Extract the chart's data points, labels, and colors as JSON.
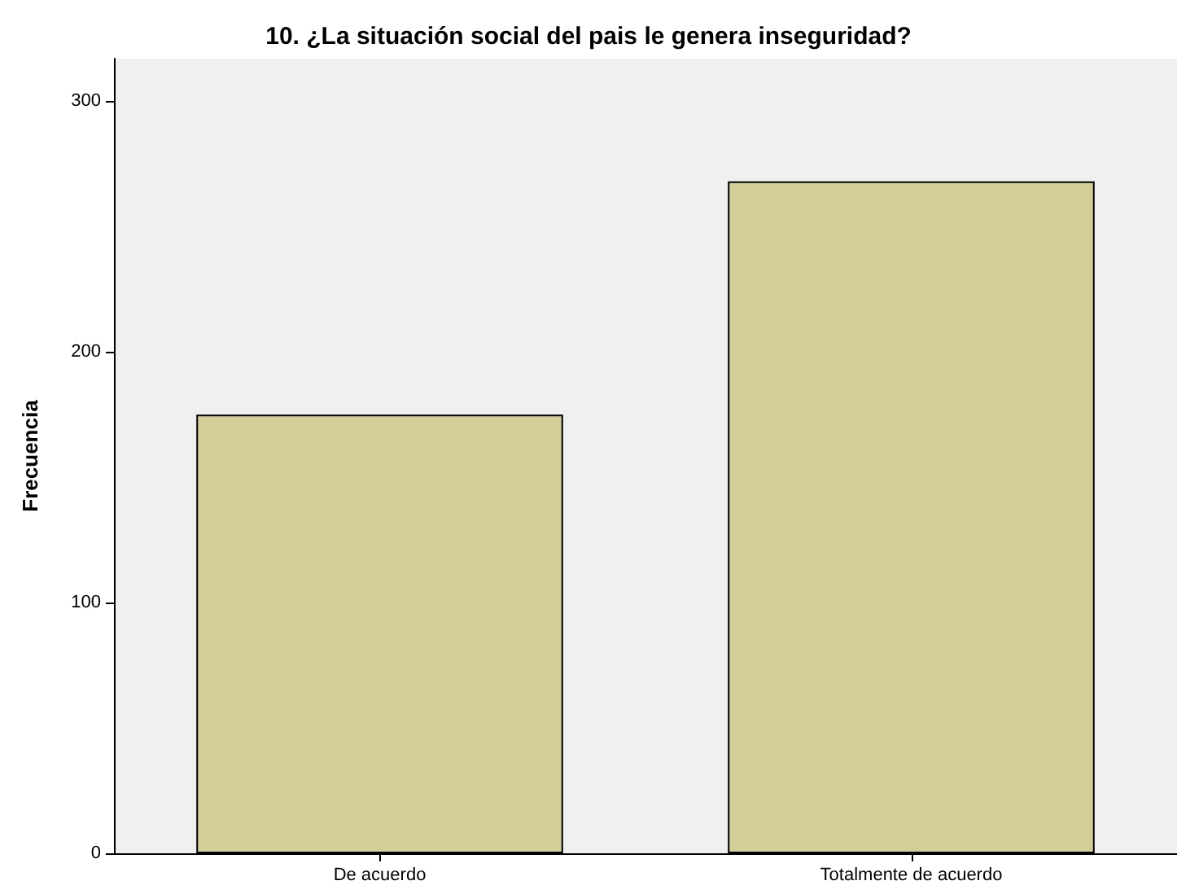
{
  "chart_data": {
    "type": "bar",
    "title": "10. ¿La situación social del pais le genera inseguridad?",
    "ylabel": "Frecuencia",
    "categories": [
      "De acuerdo",
      "Totalmente de acuerdo"
    ],
    "values": [
      175,
      268
    ],
    "color": "#d3ce98",
    "ylim": [
      0,
      317
    ],
    "yticks": [
      0,
      100,
      200,
      300
    ],
    "grid": false
  }
}
